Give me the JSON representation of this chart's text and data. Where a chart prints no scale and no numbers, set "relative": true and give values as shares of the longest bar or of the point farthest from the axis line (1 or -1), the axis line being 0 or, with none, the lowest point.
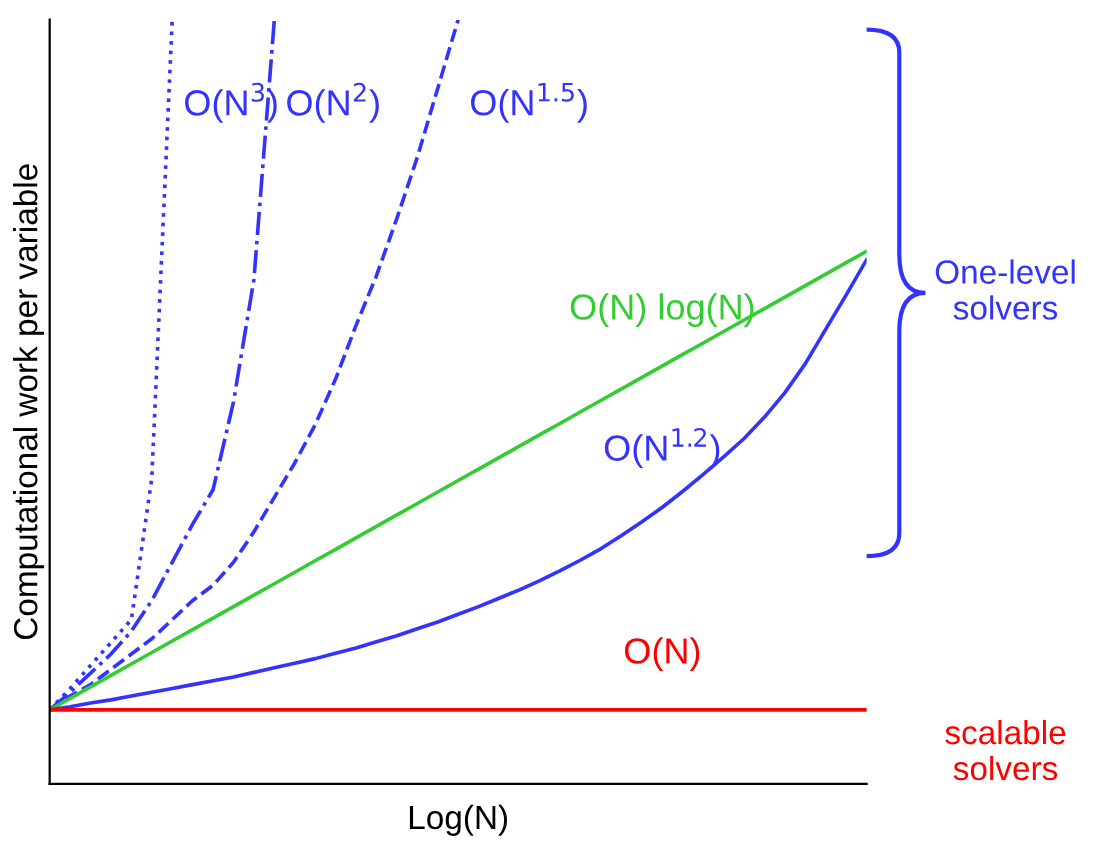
{
  "chart_data": {
    "type": "line",
    "relative": true,
    "xlabel": "Log(N)",
    "ylabel": "Computational work per variable",
    "categories": [
      null,
      null,
      null,
      null,
      null,
      null,
      null,
      null,
      null,
      null,
      null,
      null,
      null,
      null,
      null,
      null,
      null,
      null,
      null,
      null,
      null,
      null,
      null,
      null,
      null,
      null,
      null,
      null,
      null,
      null,
      null,
      null,
      null,
      null,
      null,
      null,
      null,
      null,
      null,
      null,
      null
    ],
    "series": [
      {
        "name": "O(N$^{3}$)",
        "color": "#3333ff",
        "line_style": "dotted",
        "values": [
          0.097,
          0.125,
          0.155,
          0.185,
          0.215,
          0.4,
          1.0,
          null,
          null,
          null,
          null,
          null,
          null,
          null,
          null,
          null,
          null,
          null,
          null,
          null,
          null,
          null,
          null,
          null,
          null,
          null,
          null,
          null,
          null,
          null,
          null,
          null,
          null,
          null,
          null,
          null,
          null,
          null,
          null,
          null,
          null
        ]
      },
      {
        "name": "O(N$^{2}$)",
        "color": "#3333ff",
        "line_style": "dashdot",
        "values": [
          0.097,
          0.12,
          0.145,
          0.17,
          0.2,
          0.24,
          0.29,
          0.34,
          0.385,
          0.5,
          0.66,
          1.0,
          null,
          null,
          null,
          null,
          null,
          null,
          null,
          null,
          null,
          null,
          null,
          null,
          null,
          null,
          null,
          null,
          null,
          null,
          null,
          null,
          null,
          null,
          null,
          null,
          null,
          null,
          null,
          null,
          null
        ]
      },
      {
        "name": "O(N$^{1.5}$)",
        "color": "#3333ff",
        "line_style": "dashed",
        "values": [
          0.097,
          0.115,
          0.13,
          0.15,
          0.17,
          0.19,
          0.215,
          0.24,
          0.26,
          0.29,
          0.33,
          0.375,
          0.42,
          0.47,
          0.53,
          0.6,
          0.665,
          0.74,
          0.82,
          0.91,
          1.0,
          null,
          null,
          null,
          null,
          null,
          null,
          null,
          null,
          null,
          null,
          null,
          null,
          null,
          null,
          null,
          null,
          null,
          null,
          null,
          null
        ]
      },
      {
        "name": "O(N) log(N)",
        "color": "#33cc33",
        "line_style": "solid",
        "values": [
          0.097,
          0.112,
          0.127,
          0.142,
          0.157,
          0.172,
          0.187,
          0.202,
          0.217,
          0.232,
          0.247,
          0.262,
          0.277,
          0.292,
          0.307,
          0.322,
          0.337,
          0.352,
          0.367,
          0.382,
          0.397,
          0.412,
          0.427,
          0.442,
          0.457,
          0.472,
          0.487,
          0.502,
          0.517,
          0.532,
          0.547,
          0.562,
          0.577,
          0.592,
          0.607,
          0.622,
          0.637,
          0.652,
          0.667,
          0.682,
          0.697
        ]
      },
      {
        "name": "O(N$^{1.2}$)",
        "color": "#3333ff",
        "line_style": "solid",
        "values": [
          0.097,
          0.101,
          0.106,
          0.11,
          0.115,
          0.12,
          0.125,
          0.13,
          0.135,
          0.14,
          0.146,
          0.152,
          0.158,
          0.164,
          0.171,
          0.178,
          0.186,
          0.194,
          0.203,
          0.212,
          0.222,
          0.232,
          0.243,
          0.254,
          0.266,
          0.279,
          0.293,
          0.308,
          0.325,
          0.343,
          0.362,
          0.383,
          0.405,
          0.428,
          0.452,
          0.48,
          0.512,
          0.55,
          0.595,
          0.64,
          0.686
        ]
      },
      {
        "name": "O(N)",
        "color": "#ff0000",
        "line_style": "solid",
        "values": [
          0.097,
          0.097,
          0.097,
          0.097,
          0.097,
          0.097,
          0.097,
          0.097,
          0.097,
          0.097,
          0.097,
          0.097,
          0.097,
          0.097,
          0.097,
          0.097,
          0.097,
          0.097,
          0.097,
          0.097,
          0.097,
          0.097,
          0.097,
          0.097,
          0.097,
          0.097,
          0.097,
          0.097,
          0.097,
          0.097,
          0.097,
          0.097,
          0.097,
          0.097,
          0.097,
          0.097,
          0.097,
          0.097,
          0.097,
          0.097,
          0.097
        ]
      }
    ],
    "annotations": [
      "One-level\nsolvers",
      "scalable\nsolvers"
    ]
  }
}
